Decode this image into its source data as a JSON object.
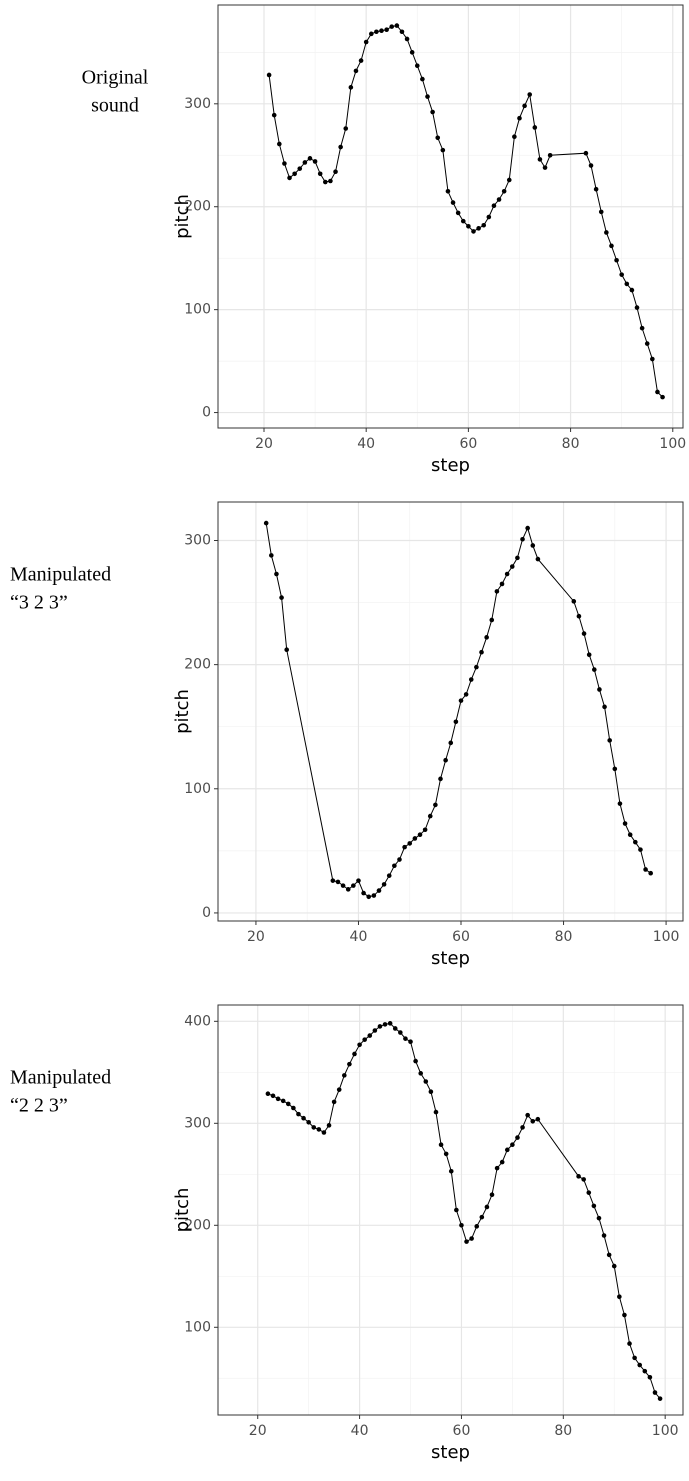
{
  "chart_data": [
    {
      "type": "line",
      "annotation": [
        "Original",
        "sound"
      ],
      "x_label": "step",
      "y_label": "pitch",
      "color": "#000000",
      "grid": true,
      "xlim": [
        11,
        102
      ],
      "ylim": [
        -15,
        396
      ],
      "xticks": [
        20,
        40,
        60,
        80,
        100
      ],
      "yticks": [
        0,
        100,
        200,
        300
      ],
      "xminor": [
        30,
        50,
        70,
        90
      ],
      "yminor": [
        50,
        150,
        250,
        350
      ],
      "x": [
        21,
        22,
        23,
        24,
        25,
        26,
        27,
        28,
        29,
        30,
        31,
        32,
        33,
        34,
        35,
        36,
        37,
        38,
        39,
        40,
        41,
        42,
        43,
        44,
        45,
        46,
        47,
        48,
        49,
        50,
        51,
        52,
        53,
        54,
        55,
        56,
        57,
        58,
        59,
        60,
        61,
        62,
        63,
        64,
        65,
        66,
        67,
        68,
        69,
        70,
        71,
        72,
        73,
        74,
        75,
        76,
        83,
        84,
        85,
        86,
        87,
        88,
        89,
        90,
        91,
        92,
        93,
        94,
        95,
        96,
        97,
        98
      ],
      "values": [
        328,
        289,
        261,
        242,
        228,
        232,
        237,
        243,
        247,
        244,
        232,
        224,
        225,
        234,
        258,
        276,
        316,
        332,
        342,
        360,
        368,
        370,
        371,
        372,
        375,
        376,
        370,
        363,
        350,
        337,
        324,
        307,
        292,
        267,
        255,
        215,
        204,
        194,
        186,
        181,
        176,
        179,
        182,
        190,
        201,
        207,
        215,
        226,
        268,
        286,
        298,
        309,
        277,
        246,
        238,
        250,
        252,
        240,
        217,
        195,
        175,
        162,
        148,
        134,
        125,
        119,
        102,
        82,
        67,
        52,
        20,
        15
      ]
    },
    {
      "type": "line",
      "annotation": [
        "Manipulated",
        "“3 2 3”"
      ],
      "x_label": "step",
      "y_label": "pitch",
      "color": "#000000",
      "grid": true,
      "xlim": [
        12.6,
        103.3
      ],
      "ylim": [
        -6.5,
        331
      ],
      "xticks": [
        20,
        40,
        60,
        80,
        100
      ],
      "yticks": [
        0,
        100,
        200,
        300
      ],
      "xminor": [
        30,
        50,
        70,
        90
      ],
      "yminor": [
        50,
        150,
        250
      ],
      "x": [
        22,
        23,
        24,
        25,
        26,
        35,
        36,
        37,
        38,
        39,
        40,
        41,
        42,
        43,
        44,
        45,
        46,
        47,
        48,
        49,
        50,
        51,
        52,
        53,
        54,
        55,
        56,
        57,
        58,
        59,
        60,
        61,
        62,
        63,
        64,
        65,
        66,
        67,
        68,
        69,
        70,
        71,
        72,
        73,
        74,
        75,
        82,
        83,
        84,
        85,
        86,
        87,
        88,
        89,
        90,
        91,
        92,
        93,
        94,
        95,
        96,
        97
      ],
      "values": [
        314,
        288,
        273,
        254,
        212,
        26,
        25,
        22,
        19,
        22,
        26,
        16,
        13,
        14,
        18,
        23,
        30,
        38,
        43,
        53,
        56,
        60,
        63,
        67,
        78,
        87,
        108,
        123,
        137,
        154,
        171,
        176,
        188,
        198,
        210,
        222,
        236,
        259,
        265,
        273,
        279,
        286,
        301,
        310,
        296,
        285,
        251,
        239,
        225,
        208,
        196,
        180,
        166,
        139,
        116,
        88,
        72,
        63,
        57,
        51,
        35,
        32
      ]
    },
    {
      "type": "line",
      "annotation": [
        "Manipulated",
        "“2 2 3”"
      ],
      "x_label": "step",
      "y_label": "pitch",
      "color": "#000000",
      "grid": true,
      "xlim": [
        12.2,
        103.5
      ],
      "ylim": [
        14,
        416
      ],
      "xticks": [
        20,
        40,
        60,
        80,
        100
      ],
      "yticks": [
        100,
        200,
        300,
        400
      ],
      "xminor": [
        30,
        50,
        70,
        90
      ],
      "yminor": [
        50,
        150,
        250,
        350
      ],
      "x": [
        22,
        23,
        24,
        25,
        26,
        27,
        28,
        29,
        30,
        31,
        32,
        33,
        34,
        35,
        36,
        37,
        38,
        39,
        40,
        41,
        42,
        43,
        44,
        45,
        46,
        47,
        48,
        49,
        50,
        51,
        52,
        53,
        54,
        55,
        56,
        57,
        58,
        59,
        60,
        61,
        62,
        63,
        64,
        65,
        66,
        67,
        68,
        69,
        70,
        71,
        72,
        73,
        74,
        75,
        83,
        84,
        85,
        86,
        87,
        88,
        89,
        90,
        91,
        92,
        93,
        94,
        95,
        96,
        97,
        98,
        99
      ],
      "values": [
        329,
        327,
        324,
        322,
        319,
        315,
        309,
        305,
        301,
        296,
        294,
        291,
        298,
        321,
        333,
        347,
        358,
        368,
        377,
        382,
        386,
        391,
        395,
        397,
        398,
        393,
        389,
        383,
        380,
        361,
        349,
        341,
        331,
        311,
        279,
        270,
        253,
        215,
        200,
        184,
        187,
        199,
        208,
        218,
        230,
        256,
        262,
        274,
        279,
        286,
        296,
        308,
        302,
        304,
        248,
        245,
        232,
        219,
        207,
        190,
        171,
        160,
        130,
        112,
        84,
        70,
        63,
        57,
        51,
        36,
        30
      ]
    }
  ]
}
